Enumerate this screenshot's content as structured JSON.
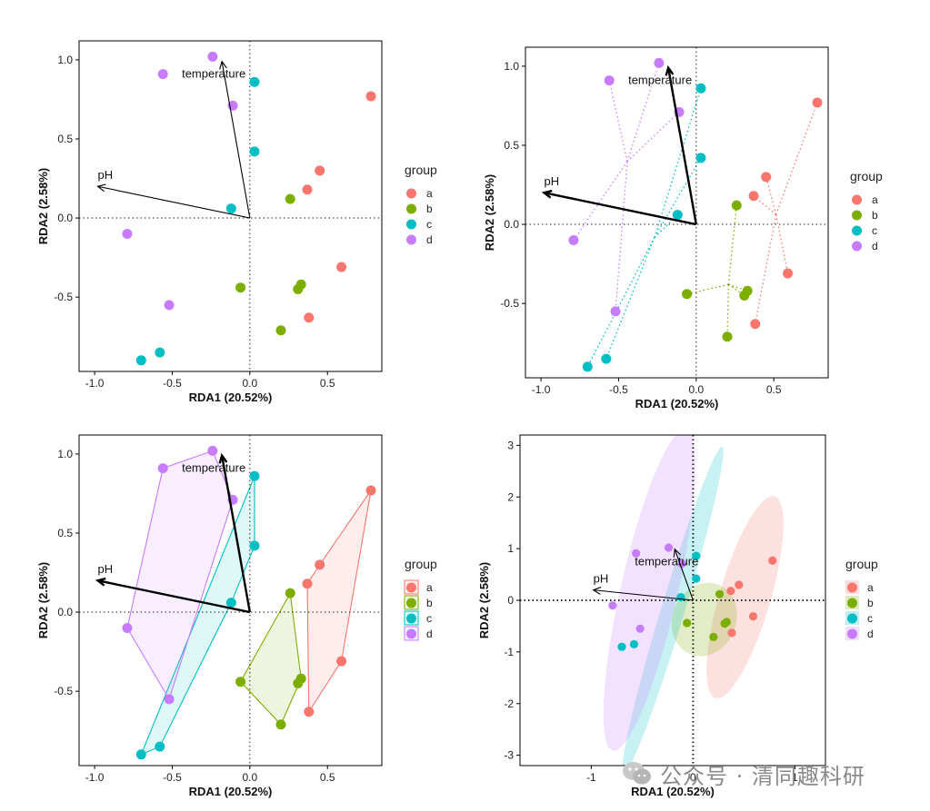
{
  "colors": {
    "a": "#F8766D",
    "b": "#7CAE00",
    "c": "#00BFC4",
    "d": "#C77CFF"
  },
  "watermark_text": "公众号 · 清同趣科研",
  "chart_data": [
    {
      "type": "scatter",
      "variant": "points",
      "xlabel": "RDA1 (20.52%)",
      "ylabel": "RDA2 (2.58%)",
      "xlim": [
        -1.1,
        0.85
      ],
      "ylim": [
        -0.97,
        1.12
      ],
      "xticks": [
        -1.0,
        -0.5,
        0.0,
        0.5
      ],
      "yticks": [
        -0.5,
        0.0,
        0.5,
        1.0
      ],
      "tick_labels_x": [
        "-1.0",
        "-0.5",
        "0.0",
        "0.5"
      ],
      "tick_labels_y": [
        "-0.5",
        "0.0",
        "0.5",
        "1.0"
      ],
      "legend": {
        "title": "group",
        "labels": [
          "a",
          "b",
          "c",
          "d"
        ],
        "position": "right"
      },
      "vectors": [
        {
          "name": "temperature",
          "x": -0.18,
          "y": 0.99
        },
        {
          "name": "pH",
          "x": -0.98,
          "y": 0.2
        }
      ],
      "series": [
        {
          "name": "a",
          "points": [
            [
              0.78,
              0.77
            ],
            [
              0.45,
              0.3
            ],
            [
              0.37,
              0.18
            ],
            [
              0.59,
              -0.31
            ],
            [
              0.38,
              -0.63
            ]
          ]
        },
        {
          "name": "b",
          "points": [
            [
              0.26,
              0.12
            ],
            [
              -0.06,
              -0.44
            ],
            [
              0.33,
              -0.42
            ],
            [
              0.31,
              -0.45
            ],
            [
              0.2,
              -0.71
            ]
          ]
        },
        {
          "name": "c",
          "points": [
            [
              0.03,
              0.86
            ],
            [
              0.03,
              0.42
            ],
            [
              -0.12,
              0.06
            ],
            [
              -0.58,
              -0.85
            ],
            [
              -0.7,
              -0.9
            ]
          ]
        },
        {
          "name": "d",
          "points": [
            [
              -0.24,
              1.02
            ],
            [
              -0.56,
              0.91
            ],
            [
              -0.11,
              0.71
            ],
            [
              -0.79,
              -0.1
            ],
            [
              -0.52,
              -0.55
            ]
          ]
        }
      ]
    },
    {
      "type": "scatter",
      "variant": "spider",
      "xlabel": "RDA1 (20.52%)",
      "ylabel": "RDA2 (2.58%)",
      "xlim": [
        -1.1,
        0.85
      ],
      "ylim": [
        -0.97,
        1.12
      ],
      "xticks": [
        -1.0,
        -0.5,
        0.0,
        0.5
      ],
      "yticks": [
        -0.5,
        0.0,
        0.5,
        1.0
      ],
      "tick_labels_x": [
        "-1.0",
        "-0.5",
        "0.0",
        "0.5"
      ],
      "tick_labels_y": [
        "-0.5",
        "0.0",
        "0.5",
        "1.0"
      ],
      "legend": {
        "title": "group",
        "labels": [
          "a",
          "b",
          "c",
          "d"
        ],
        "position": "right"
      },
      "vectors": [
        {
          "name": "temperature",
          "x": -0.18,
          "y": 0.99
        },
        {
          "name": "pH",
          "x": -0.98,
          "y": 0.2
        }
      ],
      "series": [
        {
          "name": "a",
          "points": [
            [
              0.78,
              0.77
            ],
            [
              0.45,
              0.3
            ],
            [
              0.37,
              0.18
            ],
            [
              0.59,
              -0.31
            ],
            [
              0.38,
              -0.63
            ]
          ]
        },
        {
          "name": "b",
          "points": [
            [
              0.26,
              0.12
            ],
            [
              -0.06,
              -0.44
            ],
            [
              0.33,
              -0.42
            ],
            [
              0.31,
              -0.45
            ],
            [
              0.2,
              -0.71
            ]
          ]
        },
        {
          "name": "c",
          "points": [
            [
              0.03,
              0.86
            ],
            [
              0.03,
              0.42
            ],
            [
              -0.12,
              0.06
            ],
            [
              -0.58,
              -0.85
            ],
            [
              -0.7,
              -0.9
            ]
          ]
        },
        {
          "name": "d",
          "points": [
            [
              -0.24,
              1.02
            ],
            [
              -0.56,
              0.91
            ],
            [
              -0.11,
              0.71
            ],
            [
              -0.79,
              -0.1
            ],
            [
              -0.52,
              -0.55
            ]
          ]
        }
      ]
    },
    {
      "type": "scatter",
      "variant": "hull",
      "xlabel": "RDA1 (20.52%)",
      "ylabel": "RDA2 (2.58%)",
      "xlim": [
        -1.1,
        0.85
      ],
      "ylim": [
        -0.97,
        1.12
      ],
      "xticks": [
        -1.0,
        -0.5,
        0.0,
        0.5
      ],
      "yticks": [
        -0.5,
        0.0,
        0.5,
        1.0
      ],
      "tick_labels_x": [
        "-1.0",
        "-0.5",
        "0.0",
        "0.5"
      ],
      "tick_labels_y": [
        "-0.5",
        "0.0",
        "0.5",
        "1.0"
      ],
      "legend": {
        "title": "group",
        "labels": [
          "a",
          "b",
          "c",
          "d"
        ],
        "position": "right"
      },
      "vectors": [
        {
          "name": "temperature",
          "x": -0.18,
          "y": 0.99
        },
        {
          "name": "pH",
          "x": -0.98,
          "y": 0.2
        }
      ],
      "series": [
        {
          "name": "a",
          "points": [
            [
              0.78,
              0.77
            ],
            [
              0.45,
              0.3
            ],
            [
              0.37,
              0.18
            ],
            [
              0.59,
              -0.31
            ],
            [
              0.38,
              -0.63
            ]
          ]
        },
        {
          "name": "b",
          "points": [
            [
              0.26,
              0.12
            ],
            [
              -0.06,
              -0.44
            ],
            [
              0.33,
              -0.42
            ],
            [
              0.31,
              -0.45
            ],
            [
              0.2,
              -0.71
            ]
          ]
        },
        {
          "name": "c",
          "points": [
            [
              0.03,
              0.86
            ],
            [
              0.03,
              0.42
            ],
            [
              -0.12,
              0.06
            ],
            [
              -0.58,
              -0.85
            ],
            [
              -0.7,
              -0.9
            ]
          ]
        },
        {
          "name": "d",
          "points": [
            [
              -0.24,
              1.02
            ],
            [
              -0.56,
              0.91
            ],
            [
              -0.11,
              0.71
            ],
            [
              -0.79,
              -0.1
            ],
            [
              -0.52,
              -0.55
            ]
          ]
        }
      ]
    },
    {
      "type": "scatter",
      "variant": "ellipse",
      "xlabel": "RDA1 (20.52%)",
      "ylabel": "RDA2 (2.58%)",
      "xlim": [
        -1.7,
        1.3
      ],
      "ylim": [
        -3.2,
        3.2
      ],
      "xticks": [
        -1,
        0,
        1
      ],
      "yticks": [
        -3,
        -2,
        -1,
        0,
        1,
        2,
        3
      ],
      "tick_labels_x": [
        "-1",
        "0",
        "1"
      ],
      "tick_labels_y": [
        "-3",
        "-2",
        "-1",
        "0",
        "1",
        "2",
        "3"
      ],
      "legend": {
        "title": "group",
        "labels": [
          "a",
          "b",
          "c",
          "d"
        ],
        "position": "right"
      },
      "vectors": [
        {
          "name": "temperature",
          "x": -0.18,
          "y": 0.99
        },
        {
          "name": "pH",
          "x": -0.98,
          "y": 0.2
        }
      ],
      "series": [
        {
          "name": "a",
          "points": [
            [
              0.78,
              0.77
            ],
            [
              0.45,
              0.3
            ],
            [
              0.37,
              0.18
            ],
            [
              0.59,
              -0.31
            ],
            [
              0.38,
              -0.63
            ]
          ]
        },
        {
          "name": "b",
          "points": [
            [
              0.26,
              0.12
            ],
            [
              -0.06,
              -0.44
            ],
            [
              0.33,
              -0.42
            ],
            [
              0.31,
              -0.45
            ],
            [
              0.2,
              -0.71
            ]
          ]
        },
        {
          "name": "c",
          "points": [
            [
              0.03,
              0.86
            ],
            [
              0.03,
              0.42
            ],
            [
              -0.12,
              0.06
            ],
            [
              -0.58,
              -0.85
            ],
            [
              -0.7,
              -0.9
            ]
          ]
        },
        {
          "name": "d",
          "points": [
            [
              -0.24,
              1.02
            ],
            [
              -0.56,
              0.91
            ],
            [
              -0.11,
              0.71
            ],
            [
              -0.79,
              -0.1
            ],
            [
              -0.52,
              -0.55
            ]
          ]
        }
      ]
    }
  ]
}
